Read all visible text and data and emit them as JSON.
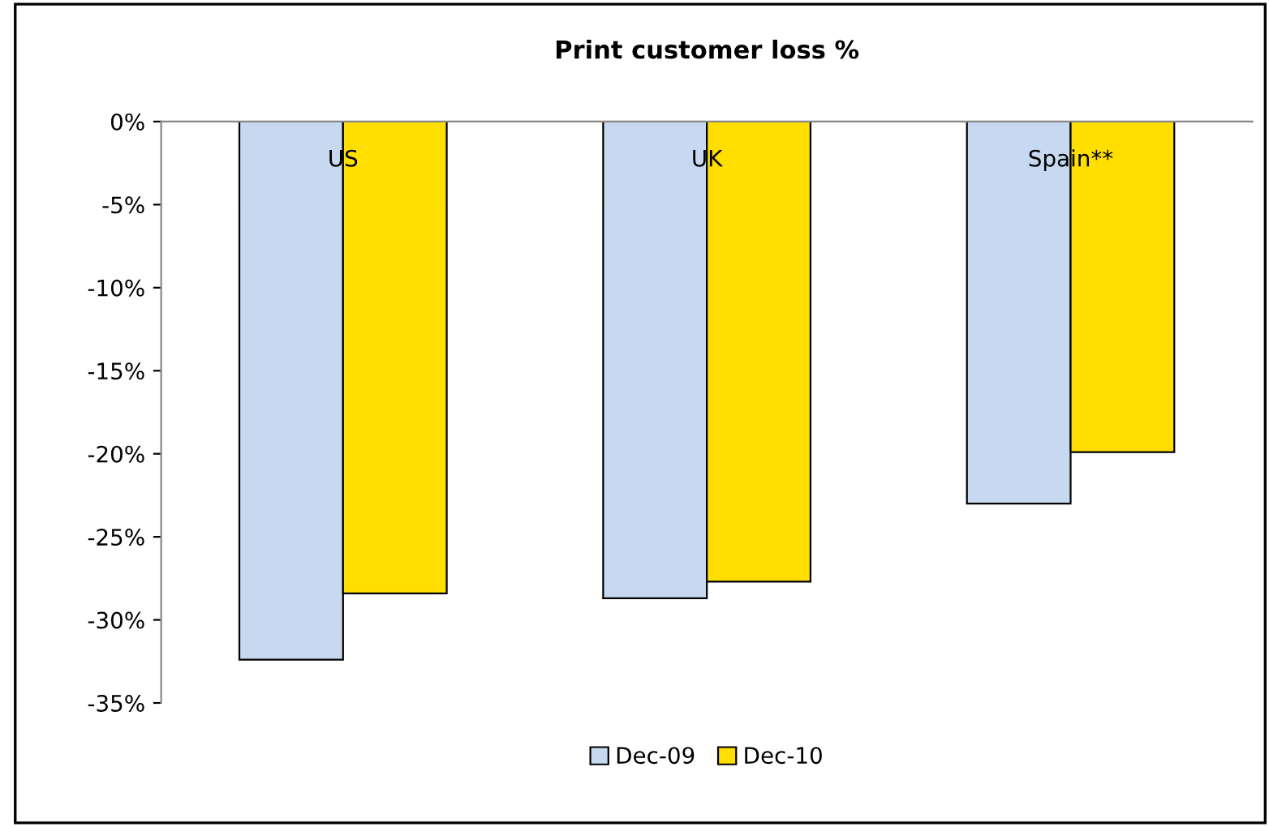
{
  "chart_data": {
    "type": "bar",
    "title": "Print customer loss %",
    "categories": [
      "US",
      "UK",
      "Spain**"
    ],
    "series": [
      {
        "name": "Dec-09",
        "color": "#c6d9f1",
        "values": [
          -32.4,
          -28.7,
          -23.0
        ]
      },
      {
        "name": "Dec-10",
        "color": "#ffde00",
        "values": [
          -28.4,
          -27.7,
          -19.9
        ]
      }
    ],
    "ylim": [
      -35,
      0
    ],
    "yticks": [
      {
        "value": -35,
        "label": "-35%"
      },
      {
        "value": -30,
        "label": "-30%"
      },
      {
        "value": -25,
        "label": "-25%"
      },
      {
        "value": -20,
        "label": "-20%"
      },
      {
        "value": -15,
        "label": "-15%"
      },
      {
        "value": -10,
        "label": "-10%"
      },
      {
        "value": -5,
        "label": "-5%"
      },
      {
        "value": 0,
        "label": "0%"
      }
    ],
    "grid": false,
    "legend": "bottom"
  }
}
